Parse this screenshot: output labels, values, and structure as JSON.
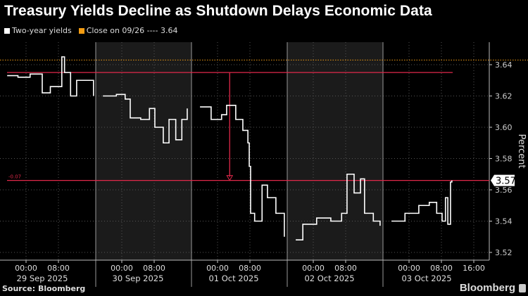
{
  "title": "Treasury Yields Decline as Shutdown Delays Economic Data",
  "source": "Source: Bloomberg",
  "brand": "Bloomberg",
  "legend": [
    {
      "label": "Two-year yields",
      "color": "#ffffff"
    },
    {
      "label": "Close on 09/26 ---- 3.64",
      "color": "#f39c12"
    }
  ],
  "chart_data": {
    "type": "line",
    "title": "Treasury Yields Decline as Shutdown Delays Economic Data",
    "ylabel": "Percent",
    "ylim": [
      3.515,
      3.655
    ],
    "yticks": [
      "3.52",
      "3.54",
      "3.56",
      "3.58",
      "3.60",
      "3.62",
      "3.64"
    ],
    "grid": true,
    "legend_position": "top-left",
    "sessions": [
      {
        "date": "2025-09-29",
        "label": "29 Sep 2025",
        "ticks": [
          "00:00",
          "08:00"
        ],
        "shaded": false
      },
      {
        "date": "2025-09-30",
        "label": "30 Sep 2025",
        "ticks": [
          "00:00",
          "08:00"
        ],
        "shaded": true
      },
      {
        "date": "2025-10-01",
        "label": "01 Oct 2025",
        "ticks": [
          "00:00",
          "08:00"
        ],
        "shaded": false
      },
      {
        "date": "2025-10-02",
        "label": "02 Oct 2025",
        "ticks": [
          "00:00",
          "08:00"
        ],
        "shaded": true
      },
      {
        "date": "2025-10-03",
        "label": "03 Oct 2025",
        "ticks": [
          "00:00",
          "08:00",
          "16:00"
        ],
        "shaded": false
      }
    ],
    "series": [
      {
        "name": "Two-year yields",
        "color": "#ffffff",
        "points": [
          [
            "2025-09-28T19:20",
            3.633
          ],
          [
            "2025-09-28T22:00",
            3.632
          ],
          [
            "2025-09-29T01:00",
            3.634
          ],
          [
            "2025-09-29T04:00",
            3.622
          ],
          [
            "2025-09-29T06:00",
            3.626
          ],
          [
            "2025-09-29T08:50",
            3.645
          ],
          [
            "2025-09-29T09:30",
            3.635
          ],
          [
            "2025-09-29T11:00",
            3.62
          ],
          [
            "2025-09-29T12:30",
            3.63
          ],
          [
            "2025-09-29T14:20",
            3.63
          ],
          [
            "2025-09-29T16:40",
            3.62
          ],
          [
            "2025-09-29T19:20",
            3.62
          ],
          [
            "2025-09-29T22:40",
            3.621
          ],
          [
            "2025-09-30T00:50",
            3.618
          ],
          [
            "2025-09-30T02:05",
            3.606
          ],
          [
            "2025-09-30T04:40",
            3.605
          ],
          [
            "2025-09-30T06:50",
            3.612
          ],
          [
            "2025-09-30T08:10",
            3.6
          ],
          [
            "2025-09-30T10:15",
            3.59
          ],
          [
            "2025-09-30T11:40",
            3.605
          ],
          [
            "2025-09-30T13:20",
            3.592
          ],
          [
            "2025-09-30T14:50",
            3.605
          ],
          [
            "2025-09-30T16:10",
            3.612
          ],
          [
            "2025-09-30T19:40",
            3.613
          ],
          [
            "2025-09-30T22:25",
            3.605
          ],
          [
            "2025-10-01T01:00",
            3.608
          ],
          [
            "2025-10-01T02:15",
            3.614
          ],
          [
            "2025-10-01T04:30",
            3.605
          ],
          [
            "2025-10-01T06:15",
            3.598
          ],
          [
            "2025-10-01T07:30",
            3.59
          ],
          [
            "2025-10-01T07:50",
            3.575
          ],
          [
            "2025-10-01T08:10",
            3.545
          ],
          [
            "2025-10-01T09:10",
            3.54
          ],
          [
            "2025-10-01T11:00",
            3.563
          ],
          [
            "2025-10-01T12:20",
            3.555
          ],
          [
            "2025-10-01T14:25",
            3.545
          ],
          [
            "2025-10-01T16:30",
            3.53
          ],
          [
            "2025-10-01T19:40",
            3.528
          ],
          [
            "2025-10-01T21:25",
            3.538
          ],
          [
            "2025-10-02T00:50",
            3.542
          ],
          [
            "2025-10-02T04:20",
            3.54
          ],
          [
            "2025-10-02T07:00",
            3.545
          ],
          [
            "2025-10-02T08:20",
            3.57
          ],
          [
            "2025-10-02T10:05",
            3.558
          ],
          [
            "2025-10-02T11:40",
            3.567
          ],
          [
            "2025-10-02T12:40",
            3.545
          ],
          [
            "2025-10-02T14:50",
            3.54
          ],
          [
            "2025-10-02T16:30",
            3.537
          ],
          [
            "2025-10-02T19:40",
            3.54
          ],
          [
            "2025-10-02T23:00",
            3.545
          ],
          [
            "2025-10-03T02:25",
            3.55
          ],
          [
            "2025-10-03T05:00",
            3.552
          ],
          [
            "2025-10-03T06:50",
            3.545
          ],
          [
            "2025-10-03T08:10",
            3.54
          ],
          [
            "2025-10-03T09:00",
            3.555
          ],
          [
            "2025-10-03T09:35",
            3.538
          ],
          [
            "2025-10-03T10:15",
            3.565
          ],
          [
            "2025-10-03T10:35",
            3.566
          ]
        ]
      }
    ],
    "reference_lines": [
      {
        "name": "Close on 09/26",
        "value": 3.643,
        "color": "#f39c12",
        "style": "dotted"
      },
      {
        "name": "high",
        "value": 3.635,
        "color": "#e0284a",
        "style": "solid"
      },
      {
        "name": "current",
        "value": 3.566,
        "color": "#e0284a",
        "style": "solid",
        "label": "-0.07"
      }
    ],
    "change_arrow": {
      "time": "2025-10-01T03:00",
      "from": 3.635,
      "to": 3.566,
      "color": "#e0284a"
    },
    "last_value_label": "3.57"
  }
}
